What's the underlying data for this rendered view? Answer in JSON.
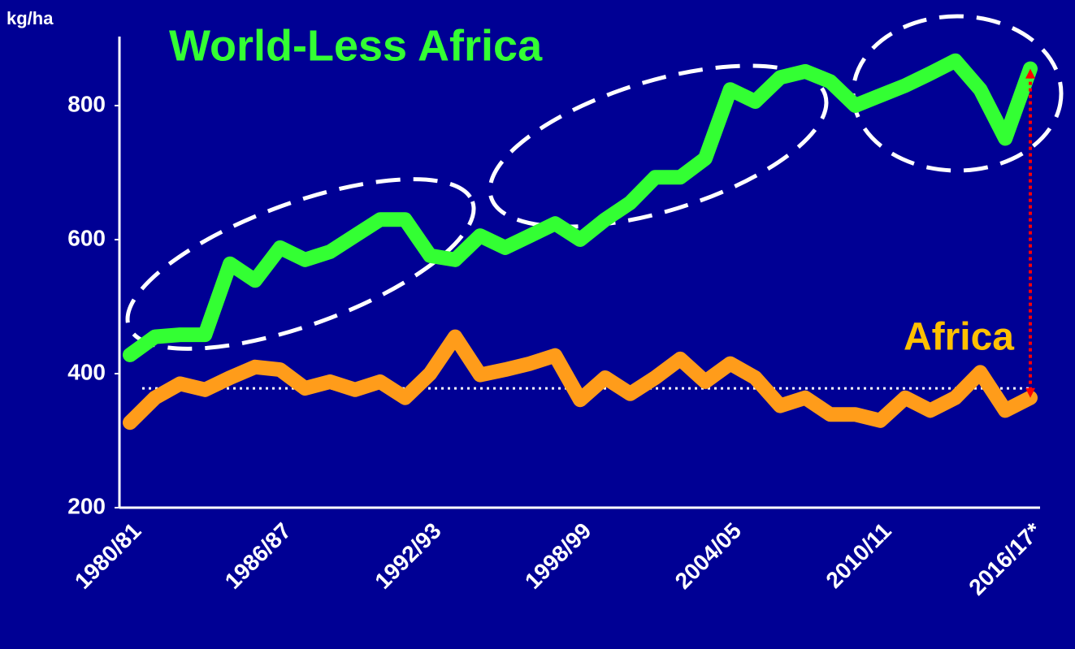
{
  "chart_data": {
    "type": "line",
    "y_label": "kg/ha",
    "categories": [
      "1980/81",
      null,
      null,
      null,
      null,
      null,
      "1986/87",
      null,
      null,
      null,
      null,
      null,
      "1992/93",
      null,
      null,
      null,
      null,
      null,
      "1998/99",
      null,
      null,
      null,
      null,
      null,
      "2004/05",
      null,
      null,
      null,
      null,
      null,
      "2010/11",
      null,
      null,
      null,
      null,
      null,
      "2016/17*"
    ],
    "series": [
      {
        "name": "World-Less Africa",
        "color": "#33ff33",
        "label_color": "#33ff33",
        "values": [
          428,
          455,
          458,
          458,
          564,
          539,
          588,
          570,
          582,
          606,
          630,
          630,
          576,
          570,
          606,
          588,
          606,
          624,
          600,
          630,
          655,
          693,
          693,
          721,
          824,
          806,
          842,
          851,
          836,
          800,
          815,
          830,
          848,
          867,
          824,
          751,
          855
        ]
      },
      {
        "name": "Africa",
        "color": "#ff9c1a",
        "label_color": "#ffc000",
        "values": [
          327,
          364,
          385,
          376,
          394,
          410,
          406,
          378,
          388,
          376,
          388,
          364,
          400,
          455,
          398,
          406,
          415,
          427,
          361,
          394,
          370,
          394,
          422,
          388,
          415,
          394,
          352,
          364,
          339,
          339,
          330,
          364,
          345,
          364,
          402,
          345,
          364
        ]
      }
    ],
    "reference_line": 378,
    "ylim": [
      200,
      900
    ],
    "yticks": [
      200,
      400,
      600,
      800
    ]
  }
}
